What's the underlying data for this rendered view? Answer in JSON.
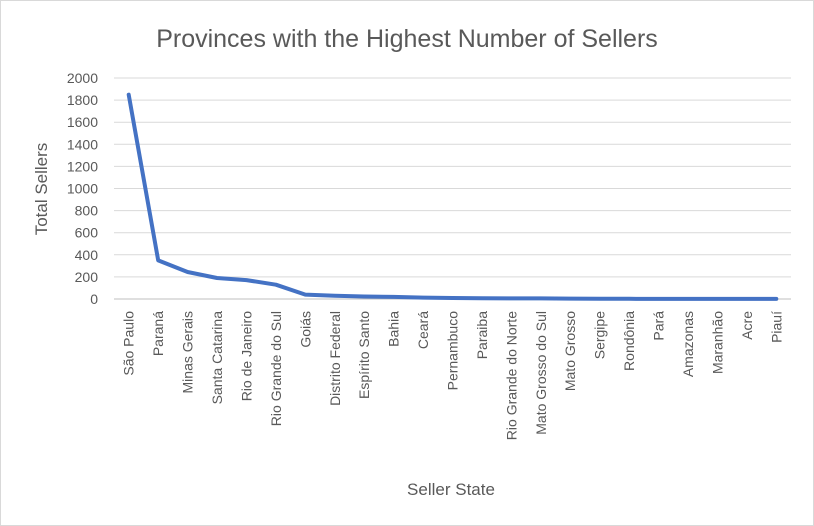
{
  "chart_data": {
    "type": "line",
    "title": "Provinces with the Highest Number of Sellers",
    "xlabel": "Seller State",
    "ylabel": "Total Sellers",
    "ylim": [
      0,
      2000
    ],
    "y_ticks": [
      "0",
      "200",
      "400",
      "600",
      "800",
      "1000",
      "1200",
      "1400",
      "1600",
      "1800",
      "2000"
    ],
    "grid": true,
    "legend": "none",
    "categories": [
      "São Paulo",
      "Paraná",
      "Minas Gerais",
      "Santa Catarina",
      "Rio de Janeiro",
      "Rio Grande do Sul",
      "Goiás",
      "Distrito Federal",
      "Espírito Santo",
      "Bahia",
      "Ceará",
      "Pernambuco",
      "Paraiba",
      "Rio Grande do Norte",
      "Mato Grosso do Sul",
      "Mato Grosso",
      "Sergipe",
      "Rondônia",
      "Pará",
      "Amazonas",
      "Maranhão",
      "Acre",
      "Piauí"
    ],
    "series": [
      {
        "color": "#4472c4",
        "values": [
          1849,
          349,
          244,
          190,
          171,
          129,
          40,
          30,
          23,
          19,
          13,
          9,
          6,
          5,
          5,
          4,
          2,
          2,
          1,
          1,
          1,
          1,
          1
        ]
      }
    ]
  }
}
